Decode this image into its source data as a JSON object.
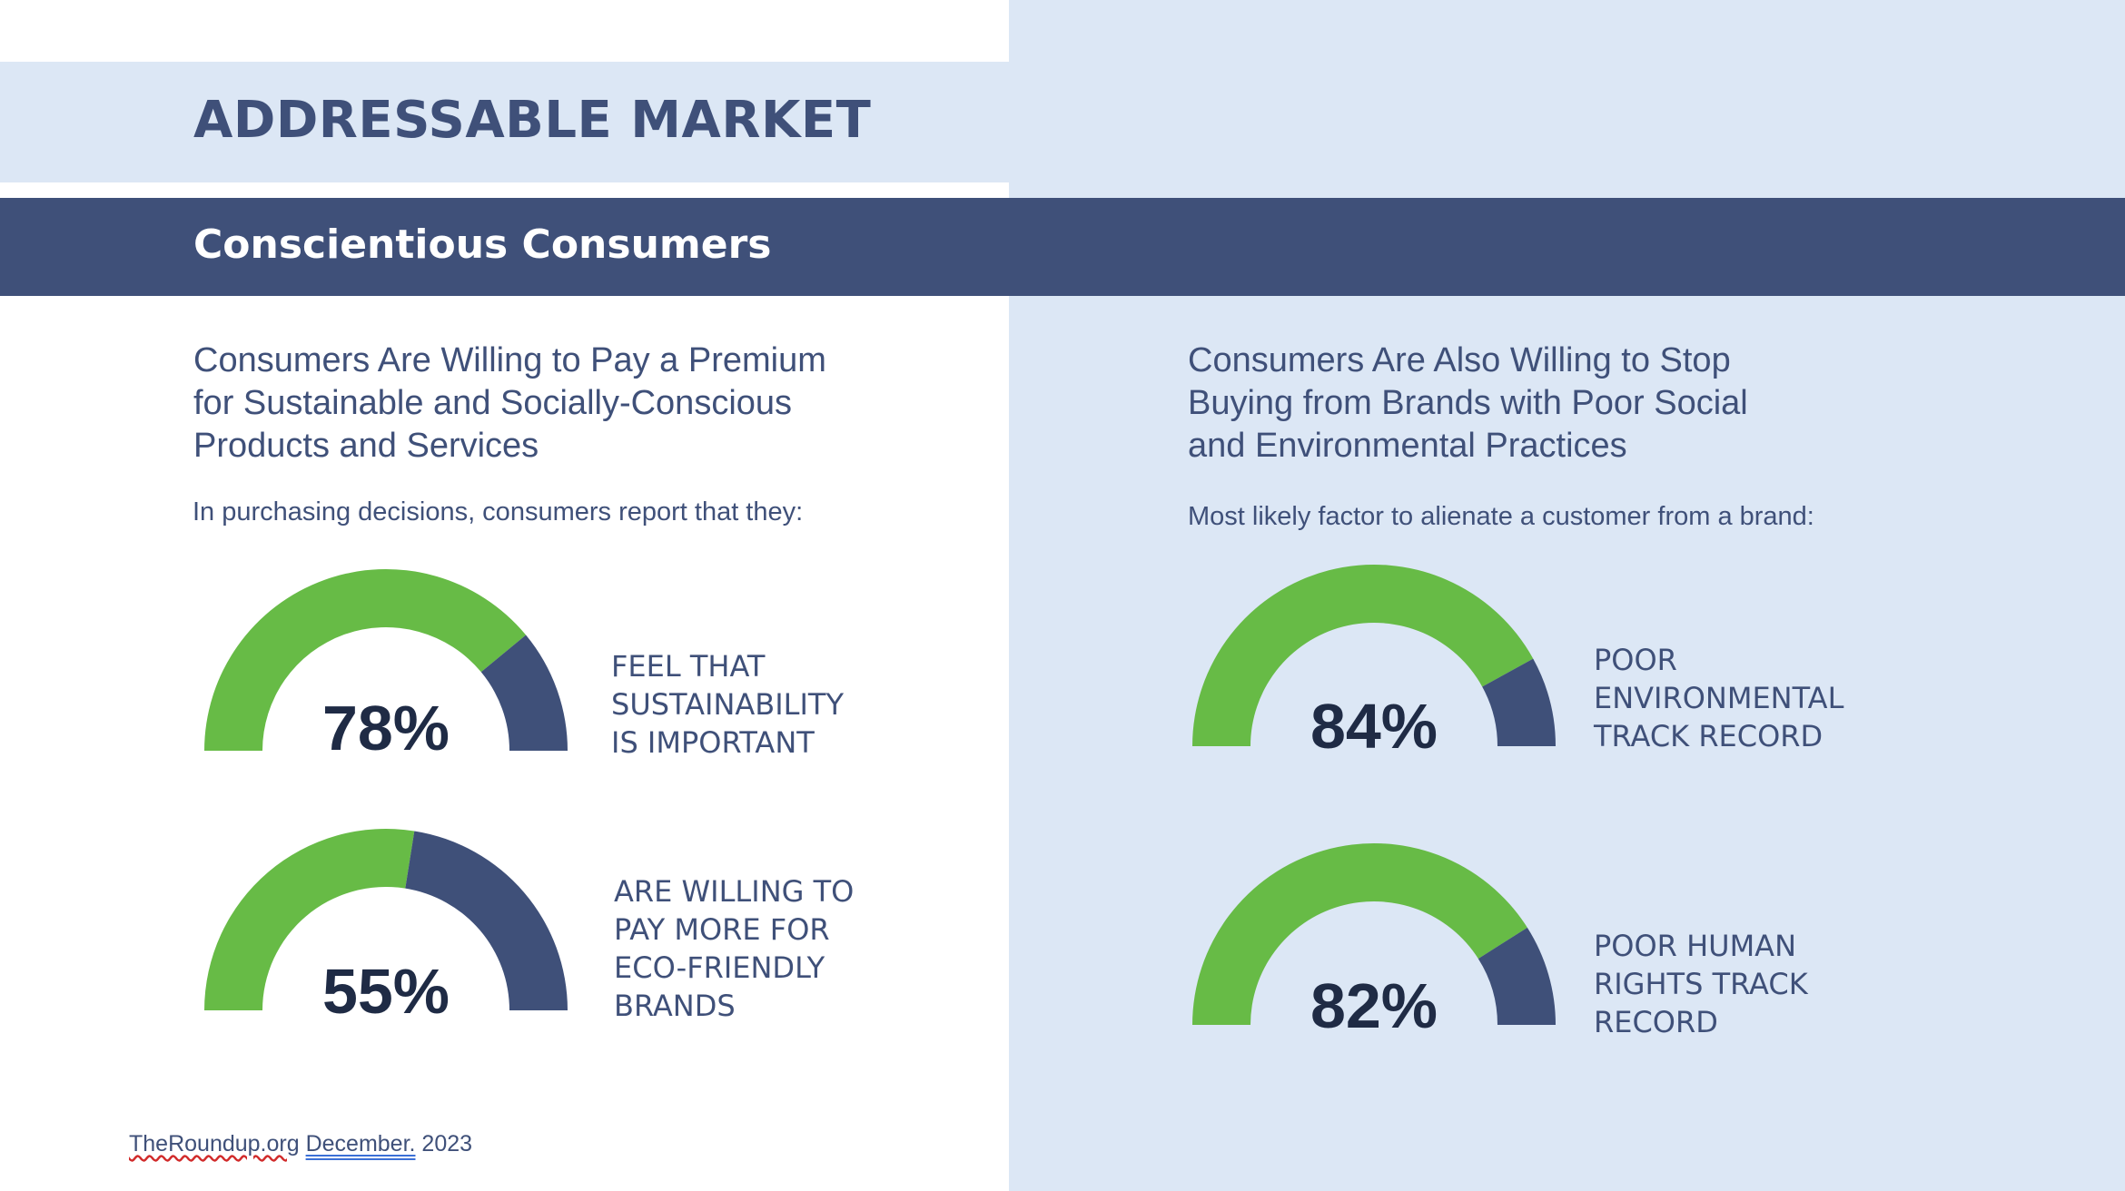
{
  "header": {
    "title": "ADDRESSABLE MARKET",
    "subtitle": "Conscientious Consumers"
  },
  "left": {
    "heading_lines": [
      "Consumers Are Willing to Pay a Premium",
      "for Sustainable and Socially-Conscious",
      "Products and Services"
    ],
    "note": "In purchasing decisions, consumers report that they:"
  },
  "right": {
    "heading_lines": [
      "Consumers Are Also Willing to Stop",
      "Buying from Brands with Poor Social",
      "and Environmental Practices"
    ],
    "note": "Most likely factor to alienate a customer from a brand:"
  },
  "source": {
    "part1": "TheRoundup.org",
    "part2": "December.",
    "part3": " 2023"
  },
  "colors": {
    "green": "#67bb46",
    "navy": "#3f5079",
    "text_dark": "#1f2b45",
    "panel_bg": "#dce7f5"
  },
  "chart_data": [
    {
      "type": "gauge",
      "value": 78,
      "value_label": "78%",
      "caption_lines": [
        "FEEL THAT",
        "SUSTAINABILITY",
        "IS IMPORTANT"
      ]
    },
    {
      "type": "gauge",
      "value": 55,
      "value_label": "55%",
      "caption_lines": [
        "ARE WILLING TO",
        "PAY MORE FOR",
        "ECO-FRIENDLY",
        "BRANDS"
      ]
    },
    {
      "type": "gauge",
      "value": 84,
      "value_label": "84%",
      "caption_lines": [
        "POOR",
        "ENVIRONMENTAL",
        "TRACK RECORD"
      ]
    },
    {
      "type": "gauge",
      "value": 82,
      "value_label": "82%",
      "caption_lines": [
        "POOR HUMAN",
        "RIGHTS TRACK",
        "RECORD"
      ]
    }
  ]
}
